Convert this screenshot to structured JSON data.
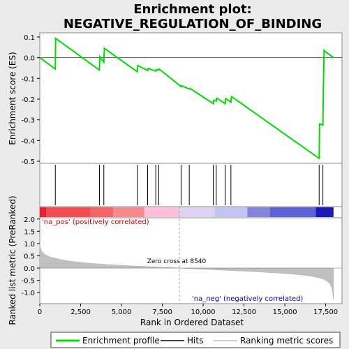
{
  "chart_data": {
    "type": "line",
    "title_line1": "Enrichment plot:",
    "title_line2": "NEGATIVE_REGULATION_OF_BINDING",
    "top_panel": {
      "ylabel": "Enrichment score (ES)",
      "ylim": [
        -0.51,
        0.12
      ],
      "yticks": [
        "0.1",
        "0.0",
        "-0.1",
        "-0.2",
        "-0.3",
        "-0.4",
        "-0.5"
      ],
      "ytick_values": [
        0.1,
        0.0,
        -0.1,
        -0.2,
        -0.3,
        -0.4,
        -0.5
      ],
      "series": [
        {
          "name": "Enrichment profile",
          "color": "#00dd00",
          "x": [
            0,
            950,
            970,
            3650,
            3680,
            3920,
            3950,
            5970,
            6000,
            6600,
            6630,
            7100,
            7130,
            7280,
            7310,
            8650,
            8680,
            9150,
            9180,
            10620,
            10650,
            10800,
            10830,
            11350,
            11380,
            11700,
            11730,
            11750,
            11780,
            17100,
            17130,
            17330,
            17360,
            17400,
            17430,
            17980
          ],
          "y": [
            0.0,
            -0.055,
            0.093,
            -0.06,
            0.005,
            -0.022,
            0.045,
            -0.068,
            -0.038,
            -0.062,
            -0.052,
            -0.065,
            -0.058,
            -0.06,
            -0.055,
            -0.14,
            -0.135,
            -0.152,
            -0.148,
            -0.222,
            -0.205,
            -0.21,
            -0.195,
            -0.222,
            -0.197,
            -0.215,
            -0.19,
            -0.192,
            -0.19,
            -0.486,
            -0.32,
            -0.325,
            -0.15,
            0.035,
            0.032,
            0.0
          ]
        }
      ]
    },
    "hits": [
      950,
      3650,
      3920,
      5970,
      6600,
      7100,
      7280,
      8650,
      9150,
      10620,
      10800,
      11350,
      11700,
      17100,
      17330
    ],
    "colorbar": {
      "segments": [
        {
          "start": 0,
          "end": 400,
          "color": "#e8212b"
        },
        {
          "start": 400,
          "end": 3100,
          "color": "#f04c51"
        },
        {
          "start": 3100,
          "end": 4500,
          "color": "#f2656a"
        },
        {
          "start": 4500,
          "end": 6400,
          "color": "#f58a8c"
        },
        {
          "start": 6400,
          "end": 8540,
          "color": "#fbbfdd"
        },
        {
          "start": 8540,
          "end": 10700,
          "color": "#dcd2f2"
        },
        {
          "start": 10700,
          "end": 12700,
          "color": "#c5c3ef"
        },
        {
          "start": 12700,
          "end": 14100,
          "color": "#8585e0"
        },
        {
          "start": 14100,
          "end": 16900,
          "color": "#5f5fd8"
        },
        {
          "start": 16900,
          "end": 17980,
          "color": "#1a1ab8"
        }
      ]
    },
    "bottom_panel": {
      "ylabel": "Ranked list metric (PreRanked)",
      "xlabel": "Rank in Ordered Dataset",
      "ylim": [
        -1.45,
        2.05
      ],
      "yticks": [
        "2.0",
        "1.5",
        "1.0",
        "0.5",
        "0.0",
        "-0.5",
        "-1.0"
      ],
      "ytick_values": [
        2.0,
        1.5,
        1.0,
        0.5,
        0.0,
        -0.5,
        -1.0
      ],
      "xlim": [
        0,
        18500
      ],
      "xticks": [
        "0",
        "2,500",
        "5,000",
        "7,500",
        "10,000",
        "12,500",
        "15,000",
        "17,500"
      ],
      "xtick_values": [
        0,
        2500,
        5000,
        7500,
        10000,
        12500,
        15000,
        17500
      ],
      "metric_curve": {
        "x": [
          0,
          30,
          100,
          200,
          400,
          700,
          1000,
          1500,
          2000,
          3000,
          4000,
          5000,
          6000,
          7000,
          8000,
          8540,
          9000,
          10000,
          11000,
          12000,
          13000,
          14000,
          15000,
          16000,
          16500,
          17000,
          17300,
          17500,
          17700,
          17850,
          17950,
          17980
        ],
        "y": [
          1.0,
          0.85,
          0.72,
          0.62,
          0.52,
          0.44,
          0.39,
          0.32,
          0.27,
          0.2,
          0.15,
          0.11,
          0.08,
          0.05,
          0.02,
          0.0,
          -0.02,
          -0.05,
          -0.08,
          -0.11,
          -0.14,
          -0.18,
          -0.22,
          -0.28,
          -0.32,
          -0.38,
          -0.44,
          -0.5,
          -0.6,
          -0.75,
          -1.1,
          -1.3
        ]
      },
      "pos_label": "'na_pos' (positively correlated)",
      "neg_label": "'na_neg' (negatively correlated)",
      "zero_cross_label": "Zero cross at 8540",
      "zero_cross": 8540
    },
    "legend": {
      "items": [
        {
          "label": "Enrichment profile",
          "color": "#00dd00"
        },
        {
          "label": "Hits",
          "color": "#000000"
        },
        {
          "label": "Ranking metric scores",
          "color": "#c0c0c0"
        }
      ]
    }
  }
}
